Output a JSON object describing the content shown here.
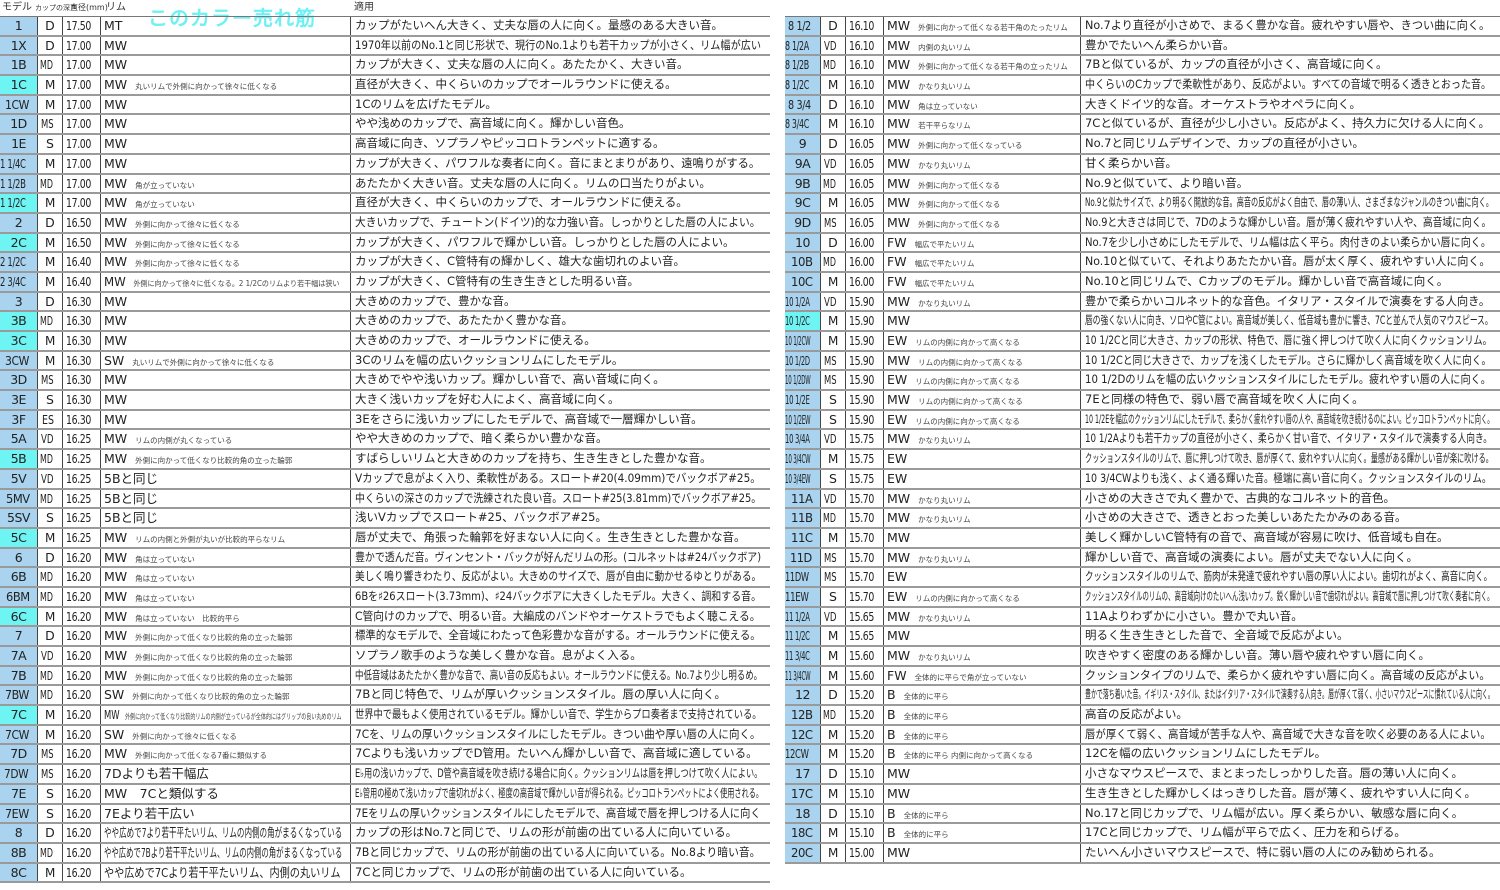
{
  "header": {
    "model": "モデル",
    "depth": "カップの深さ",
    "diameter": "直径(mm)",
    "rim": "リム",
    "application": "適用",
    "bestseller_note": "このカラー売れ筋"
  },
  "colors": {
    "model_cell": "#a9d3ee",
    "bestseller": "#6ff4f4"
  },
  "left_rows": [
    {
      "model": "1",
      "depth": "D",
      "dia": "17.50",
      "rim": "MT",
      "note": "",
      "desc": "カップがたいへん大きく、丈夫な唇の人に向く。量感のある大きい音。",
      "hl": false
    },
    {
      "model": "1X",
      "depth": "D",
      "dia": "17.00",
      "rim": "MW",
      "note": "",
      "desc": "1970年以前のNo.1と同じ形状で、現行のNo.1よりも若干カップが小さく、リム幅が広い",
      "hl": false
    },
    {
      "model": "1B",
      "depth": "MD",
      "dia": "17.00",
      "rim": "MW",
      "note": "",
      "desc": "カップが大きく、丈夫な唇の人に向く。あたたかく、大きい音。",
      "hl": false
    },
    {
      "model": "1C",
      "depth": "M",
      "dia": "17.00",
      "rim": "MW",
      "note": "丸いリムで外側に向かって徐々に低くなる",
      "desc": "直径が大きく、中くらいのカップでオールラウンドに使える。",
      "hl": true
    },
    {
      "model": "1CW",
      "depth": "M",
      "dia": "17.00",
      "rim": "MW",
      "note": "",
      "desc": "1Cのリムを広げたモデル。",
      "hl": false
    },
    {
      "model": "1D",
      "depth": "MS",
      "dia": "17.00",
      "rim": "MW",
      "note": "",
      "desc": "やや浅めのカップで、高音域に向く。輝かしい音色。",
      "hl": false
    },
    {
      "model": "1E",
      "depth": "S",
      "dia": "17.00",
      "rim": "MW",
      "note": "",
      "desc": "高音域に向き、ソプラノやピッコロトランペットに適する。",
      "hl": false
    },
    {
      "model": "1 1/4C",
      "depth": "M",
      "dia": "17.00",
      "rim": "MW",
      "note": "",
      "desc": "カップが大きく、パワフルな奏者に向く。音にまとまりがあり、遠鳴りがする。",
      "hl": false
    },
    {
      "model": "1 1/2B",
      "depth": "MD",
      "dia": "17.00",
      "rim": "MW",
      "note": "角が立っていない",
      "desc": "あたたかく大きい音。丈夫な唇の人に向く。リムの口当たりがよい。",
      "hl": false
    },
    {
      "model": "1 1/2C",
      "depth": "M",
      "dia": "17.00",
      "rim": "MW",
      "note": "角が立っていない",
      "desc": "直径が大きく、中くらいのカップで、オールラウンドに使える。",
      "hl": true
    },
    {
      "model": "2",
      "depth": "D",
      "dia": "16.50",
      "rim": "MW",
      "note": "外側に向かって徐々に低くなる",
      "desc": "大きいカップで、チュートン(ドイツ)的な力強い音。しっかりとした唇の人によい。",
      "hl": false
    },
    {
      "model": "2C",
      "depth": "M",
      "dia": "16.50",
      "rim": "MW",
      "note": "外側に向かって徐々に低くなる",
      "desc": "カップが大きく、パワフルで輝かしい音。しっかりとした唇の人によい。",
      "hl": true
    },
    {
      "model": "2 1/2C",
      "depth": "M",
      "dia": "16.40",
      "rim": "MW",
      "note": "外側に向かって徐々に低くなる",
      "desc": "カップが大きく、C管特有の輝かしく、雄大な歯切れのよい音。",
      "hl": false
    },
    {
      "model": "2 3/4C",
      "depth": "M",
      "dia": "16.40",
      "rim": "MW",
      "note": "外側に向かって徐々に低くなる。2 1/2Cのリムより若干幅は狭い",
      "desc": "カップが大きく、C管特有の生き生きとした明るい音。",
      "hl": false
    },
    {
      "model": "3",
      "depth": "D",
      "dia": "16.30",
      "rim": "MW",
      "note": "",
      "desc": "大きめのカップで、豊かな音。",
      "hl": false
    },
    {
      "model": "3B",
      "depth": "MD",
      "dia": "16.30",
      "rim": "MW",
      "note": "",
      "desc": "大きめのカップで、あたたかく豊かな音。",
      "hl": true
    },
    {
      "model": "3C",
      "depth": "M",
      "dia": "16.30",
      "rim": "MW",
      "note": "",
      "desc": "大きめのカップで、オールラウンドに使える。",
      "hl": true
    },
    {
      "model": "3CW",
      "depth": "M",
      "dia": "16.30",
      "rim": "SW",
      "note": "丸いリムで外側に向かって徐々に低くなる",
      "desc": "3Cのリムを幅の広いクッションリムにしたモデル。",
      "hl": false
    },
    {
      "model": "3D",
      "depth": "MS",
      "dia": "16.30",
      "rim": "MW",
      "note": "",
      "desc": "大きめでやや浅いカップ。輝かしい音で、高い音域に向く。",
      "hl": false
    },
    {
      "model": "3E",
      "depth": "S",
      "dia": "16.30",
      "rim": "MW",
      "note": "",
      "desc": "大きく浅いカップを好む人によく、高音域に向く。",
      "hl": false
    },
    {
      "model": "3F",
      "depth": "ES",
      "dia": "16.30",
      "rim": "MW",
      "note": "",
      "desc": "3Eをさらに浅いカップにしたモデルで、高音域で一層輝かしい音。",
      "hl": false
    },
    {
      "model": "5A",
      "depth": "VD",
      "dia": "16.25",
      "rim": "MW",
      "note": "リムの内側が丸くなっている",
      "desc": "やや大きめのカップで、暗く柔らかい豊かな音。",
      "hl": false
    },
    {
      "model": "5B",
      "depth": "MD",
      "dia": "16.25",
      "rim": "MW",
      "note": "外側に向かって低くなり比較的角の立った輪郭",
      "desc": "すばらしいリムと大きめのカップを持ち、生き生きとした豊かな音。",
      "hl": true
    },
    {
      "model": "5V",
      "depth": "VD",
      "dia": "16.25",
      "rim": "5Bと同じ",
      "note": "",
      "desc": "Vカップで息がよく入り、柔軟性がある。スロート#20(4.09mm)でバックボア#25。",
      "hl": false
    },
    {
      "model": "5MV",
      "depth": "MD",
      "dia": "16.25",
      "rim": "5Bと同じ",
      "note": "",
      "desc": "中くらいの深さのカップで洗練された良い音。スロート#25(3.81mm)でバックボア#25。",
      "hl": false
    },
    {
      "model": "5SV",
      "depth": "S",
      "dia": "16.25",
      "rim": "5Bと同じ",
      "note": "",
      "desc": "浅いVカップでスロート#25、バックボア#25。",
      "hl": false
    },
    {
      "model": "5C",
      "depth": "M",
      "dia": "16.25",
      "rim": "MW",
      "note": "リムの内側と外側が丸いが比較的平らなリム",
      "desc": "唇が丈夫で、角張った輪郭を好まない人に向く。生き生きとした豊かな音。",
      "hl": true
    },
    {
      "model": "6",
      "depth": "D",
      "dia": "16.20",
      "rim": "MW",
      "note": "角は立っていない",
      "desc": "豊かで透んだ音。ヴィンセント・バックが好んだリムの形。(コルネットは#24バックボア)",
      "hl": false
    },
    {
      "model": "6B",
      "depth": "MD",
      "dia": "16.20",
      "rim": "MW",
      "note": "角は立っていない",
      "desc": "美しく鳴り響きわたり、反応がよい。大きめのサイズで、唇が自由に動かせるゆとりがある。",
      "hl": false
    },
    {
      "model": "6BM",
      "depth": "MD",
      "dia": "16.20",
      "rim": "MW",
      "note": "角は立っていない",
      "desc": "6Bを♯26スロート(3.73mm)、♯24バックボアに大きくしたモデル。大きく、調和する音。",
      "hl": false
    },
    {
      "model": "6C",
      "depth": "M",
      "dia": "16.20",
      "rim": "MW",
      "note": "角は立っていない　比較的平ら",
      "desc": "C管向けのカップで、明るい音。大編成のバンドやオーケストラでもよく聴こえる。",
      "hl": true
    },
    {
      "model": "7",
      "depth": "D",
      "dia": "16.20",
      "rim": "MW",
      "note": "外側に向かって低くなり比較的角の立った輪郭",
      "desc": "標準的なモデルで、全音域にわたって色彩豊かな音がする。オールラウンドに使える。",
      "hl": false
    },
    {
      "model": "7A",
      "depth": "VD",
      "dia": "16.20",
      "rim": "MW",
      "note": "外側に向かって低くなり比較的角の立った輪郭",
      "desc": "ソプラノ歌手のような美しく豊かな音。息がよく入る。",
      "hl": false
    },
    {
      "model": "7B",
      "depth": "MD",
      "dia": "16.20",
      "rim": "MW",
      "note": "外側に向かって低くなり比較的角の立った輪郭",
      "desc": "中低音域はあたたかく豊かな音で、高い音の反応もよい。オールラウンドに使える。No.7より少し明るめ。",
      "hl": false
    },
    {
      "model": "7BW",
      "depth": "MD",
      "dia": "16.20",
      "rim": "SW",
      "note": "外側に向かって低くなり比較的角の立った輪郭",
      "desc": "7Bと同じ特色で、リムが厚いクッションスタイル。唇の厚い人に向く。",
      "hl": false
    },
    {
      "model": "7C",
      "depth": "M",
      "dia": "16.20",
      "rim": "MW",
      "note": "外側に向かって低くなり比較的リムの内側が立っているが全体的にはグリップの良い丸めのリム",
      "desc": "世界中で最もよく使用されているモデル。輝かしい音で、学生からプロ奏者まで支持されている。",
      "hl": true
    },
    {
      "model": "7CW",
      "depth": "M",
      "dia": "16.20",
      "rim": "SW",
      "note": "外側に向かって徐々に低くなる",
      "desc": "7Cを、リムの厚いクッションスタイルにしたモデル。きつい曲や厚い唇の人に向く。",
      "hl": false
    },
    {
      "model": "7D",
      "depth": "MS",
      "dia": "16.20",
      "rim": "MW",
      "note": "外側に向かって低くなる7番に類似する",
      "desc": "7Cよりも浅いカップでD管用。たいへん輝かしい音で、高音域に適している。",
      "hl": false
    },
    {
      "model": "7DW",
      "depth": "MS",
      "dia": "16.20",
      "rim": "7Dよりも若干幅広",
      "note": "",
      "desc": "E♭用の浅いカップで、D管や高音域を吹き続ける場合に向く。クッションリムは唇を押しつけて吹く人によい。",
      "hl": false
    },
    {
      "model": "7E",
      "depth": "S",
      "dia": "16.20",
      "rim": "MW　7Cと類似する",
      "note": "",
      "desc": "E♭管用の極めて浅いカップで歯切れがよく、極度の高音域で輝かしい音が得られる。ピッコロトランペットによく使用される。",
      "hl": false
    },
    {
      "model": "7EW",
      "depth": "S",
      "dia": "16.20",
      "rim": "7Eより若干広い",
      "note": "",
      "desc": "7Eをリムの厚いクッションスタイルにしたモデルで、高音域で唇を押しつける人に向く",
      "hl": false
    },
    {
      "model": "8",
      "depth": "D",
      "dia": "16.20",
      "rim": "やや広めで7より若干平たいリム、リムの内側の角がまるくなっている",
      "note": "",
      "desc": "カップの形はNo.7と同じで、リムの形が前歯の出ている人に向いている。",
      "hl": false
    },
    {
      "model": "8B",
      "depth": "MD",
      "dia": "16.20",
      "rim": "やや広めで7Bより若干平たいリム、リムの内側の角がまるくなっている",
      "note": "",
      "desc": "7Bと同じカップで、リムの形が前歯の出ている人に向いている。No.8より暗い音。",
      "hl": false
    },
    {
      "model": "8C",
      "depth": "M",
      "dia": "16.20",
      "rim": "やや広めで7Cより若干平たいリム、内側の丸いリム",
      "note": "",
      "desc": "7Cと同じカップで、リムの形が前歯の出ている人に向いている。",
      "hl": false
    }
  ],
  "right_rows": [
    {
      "model": "8 1/2",
      "depth": "D",
      "dia": "16.10",
      "rim": "MW",
      "note": "外側に向かって低くなる若干角のたったリム",
      "desc": "No.7より直径が小さめで、まるく豊かな音。疲れやすい唇や、きつい曲に向く。",
      "hl": false
    },
    {
      "model": "8 1/2A",
      "depth": "VD",
      "dia": "16.10",
      "rim": "MW",
      "note": "内側の丸いリム",
      "desc": "豊かでたいへん柔らかい音。",
      "hl": false
    },
    {
      "model": "8 1/2B",
      "depth": "MD",
      "dia": "16.10",
      "rim": "MW",
      "note": "外側に向かって低くなる若干角の立ったリム",
      "desc": "7Bと似ているが、カップの直径が小さく、高音域に向く。",
      "hl": false
    },
    {
      "model": "8 1/2C",
      "depth": "M",
      "dia": "16.10",
      "rim": "MW",
      "note": "かなり丸いリム",
      "desc": "中くらいのCカップで柔軟性があり、反応がよい。すべての音域で明るく透きとおった音。",
      "hl": false
    },
    {
      "model": "8 3/4",
      "depth": "D",
      "dia": "16.10",
      "rim": "MW",
      "note": "角は立っていない",
      "desc": "大きくドイツ的な音。オーケストラやオペラに向く。",
      "hl": false
    },
    {
      "model": "8 3/4C",
      "depth": "M",
      "dia": "16.10",
      "rim": "MW",
      "note": "若干平らなリム",
      "desc": "7Cと似ているが、直径が少し小さい。反応がよく、持久力に欠ける人に向く。",
      "hl": false
    },
    {
      "model": "9",
      "depth": "D",
      "dia": "16.05",
      "rim": "MW",
      "note": "外側に向かって低くなっている",
      "desc": "No.7と同じリムデザインで、カップの直径が小さい。",
      "hl": false
    },
    {
      "model": "9A",
      "depth": "VD",
      "dia": "16.05",
      "rim": "MW",
      "note": "かなり丸いリム",
      "desc": "甘く柔らかい音。",
      "hl": false
    },
    {
      "model": "9B",
      "depth": "MD",
      "dia": "16.05",
      "rim": "MW",
      "note": "外側に向かって低くなる",
      "desc": "No.9と似ていて、より暗い音。",
      "hl": false
    },
    {
      "model": "9C",
      "depth": "M",
      "dia": "16.05",
      "rim": "MW",
      "note": "外側に向かって低くなる",
      "desc": "No.9と似たサイズで、より明るく開放的な音。高音の反応がよく自由で、唇の薄い人、さまざまなジャンルのきつい曲に向く。",
      "hl": false
    },
    {
      "model": "9D",
      "depth": "MS",
      "dia": "16.05",
      "rim": "MW",
      "note": "外側に向かって低くなる",
      "desc": "No.9と大きさは同じで、7Dのような輝かしい音。唇が薄く疲れやすい人や、高音域に向く。",
      "hl": false
    },
    {
      "model": "10",
      "depth": "D",
      "dia": "16.00",
      "rim": "FW",
      "note": "幅広で平たいリム",
      "desc": "No.7を少し小さめにしたモデルで、リム幅は広く平ら。肉付きのよい柔らかい唇に向く。",
      "hl": false
    },
    {
      "model": "10B",
      "depth": "MD",
      "dia": "16.00",
      "rim": "FW",
      "note": "幅広で平たいリム",
      "desc": "No.10と似ていて、それよりあたたかい音。唇が太く厚く、疲れやすい人に向く。",
      "hl": false
    },
    {
      "model": "10C",
      "depth": "M",
      "dia": "16.00",
      "rim": "FW",
      "note": "幅広で平たいリム",
      "desc": "No.10と同じリムで、Cカップのモデル。輝かしい音で高音域に向く。",
      "hl": false
    },
    {
      "model": "10 1/2A",
      "depth": "VD",
      "dia": "15.90",
      "rim": "MW",
      "note": "かなり丸いリム",
      "desc": "豊かで柔らかいコルネット的な音色。イタリア・スタイルで演奏をする人向き。",
      "hl": false
    },
    {
      "model": "10 1/2C",
      "depth": "M",
      "dia": "15.90",
      "rim": "MW",
      "note": "",
      "desc": "唇の強くない人に向き、ソロやC管によい。高音域が美しく、低音域も豊かに響き、7Cと並んで人気のマウスピース。",
      "hl": true
    },
    {
      "model": "10 1/2CW",
      "depth": "M",
      "dia": "15.90",
      "rim": "EW",
      "note": "リムの内側に向かって高くなる",
      "desc": "10 1/2Cと同じ大きさ、カップの形状、特色で、唇に強く押しつけて吹く人に向くクッションリム。",
      "hl": false
    },
    {
      "model": "10 1/2D",
      "depth": "MS",
      "dia": "15.90",
      "rim": "MW",
      "note": "リムの内側に向かって高くなる",
      "desc": "10 1/2Cと同じ大きさで、カップを浅くしたモデル。さらに輝かしく高音域を吹く人に向く。",
      "hl": false
    },
    {
      "model": "10 1/2DW",
      "depth": "MS",
      "dia": "15.90",
      "rim": "EW",
      "note": "リムの内側に向かって高くなる",
      "desc": "10 1/2Dのリムを幅の広いクッションスタイルにしたモデル。疲れやすい唇の人に向く。",
      "hl": false
    },
    {
      "model": "10 1/2E",
      "depth": "S",
      "dia": "15.90",
      "rim": "MW",
      "note": "リムの内側に向かって高くなる",
      "desc": "7Eと同様の特色で、弱い唇で高音域を吹く人に向く。",
      "hl": false
    },
    {
      "model": "10 1/2EW",
      "depth": "S",
      "dia": "15.90",
      "rim": "EW",
      "note": "リムの内側に向かって高くなる",
      "desc": "10 1/2Eを幅広のクッションリムにしたモデルで、柔らかく疲れやすい唇の人や、高音域を吹き続けるのによい。ピッコロトランペットに向く。",
      "hl": false
    },
    {
      "model": "10 3/4A",
      "depth": "VD",
      "dia": "15.75",
      "rim": "MW",
      "note": "かなり丸いリム",
      "desc": "10 1/2Aよりも若干カップの直径が小さく、柔らかく甘い音で、イタリア・スタイルで演奏する人向き。",
      "hl": false
    },
    {
      "model": "10 3/4CW",
      "depth": "M",
      "dia": "15.75",
      "rim": "EW",
      "note": "",
      "desc": "クッションスタイルのリムで、唇に押しつけて吹き、唇が厚くて、疲れやすい人に向く。量感がある輝かしい音が楽に吹ける。",
      "hl": false
    },
    {
      "model": "10 3/4EW",
      "depth": "S",
      "dia": "15.75",
      "rim": "EW",
      "note": "",
      "desc": "10 3/4CWよりも浅く、よく通る輝いた音。極端に高い音に向く。クッションスタイルのリム。",
      "hl": false
    },
    {
      "model": "11A",
      "depth": "VD",
      "dia": "15.70",
      "rim": "MW",
      "note": "かなり丸いリム",
      "desc": "小さめの大きさで丸く豊かで、古典的なコルネット的音色。",
      "hl": false
    },
    {
      "model": "11B",
      "depth": "MD",
      "dia": "15.70",
      "rim": "MW",
      "note": "かなり丸いリム",
      "desc": "小さめの大きさで、透きとおった美しいあたたかみのある音。",
      "hl": false
    },
    {
      "model": "11C",
      "depth": "M",
      "dia": "15.70",
      "rim": "MW",
      "note": "",
      "desc": "美しく輝かしいC管特有の音で、高音域が容易に吹け、低音域も自在。",
      "hl": false
    },
    {
      "model": "11D",
      "depth": "MS",
      "dia": "15.70",
      "rim": "MW",
      "note": "かなり丸いリム",
      "desc": "輝かしい音で、高音域の演奏によい。唇が丈夫でない人に向く。",
      "hl": false
    },
    {
      "model": "11DW",
      "depth": "MS",
      "dia": "15.70",
      "rim": "EW",
      "note": "",
      "desc": "クッションスタイルのリムで、筋肉が未発達で疲れやすい唇の厚い人によい。歯切れがよく、高音に向く。",
      "hl": false
    },
    {
      "model": "11EW",
      "depth": "S",
      "dia": "15.70",
      "rim": "EW",
      "note": "リムの内側に向かって高くなる",
      "desc": "クッションスタイルのリムの、高音域向けのたいへん浅いカップ。鋭く輝かしい音で歯切れがよい。高音域で唇に押しつけて吹く奏者に向く。",
      "hl": false
    },
    {
      "model": "11 1/2A",
      "depth": "VD",
      "dia": "15.65",
      "rim": "MW",
      "note": "かなり丸いリム",
      "desc": "11Aよりわずかに小さい。豊かで丸い音。",
      "hl": false
    },
    {
      "model": "11 1/2C",
      "depth": "M",
      "dia": "15.65",
      "rim": "MW",
      "note": "",
      "desc": "明るく生き生きとした音で、全音域で反応がよい。",
      "hl": false
    },
    {
      "model": "11 3/4C",
      "depth": "M",
      "dia": "15.60",
      "rim": "MW",
      "note": "かなり丸いリム",
      "desc": "吹きやすく密度のある輝かしい音。薄い唇や疲れやすい唇に向く。",
      "hl": false
    },
    {
      "model": "11 3/4CW",
      "depth": "M",
      "dia": "15.60",
      "rim": "FW",
      "note": "全体的に平らで角が立っていない",
      "desc": "クッションタイプのリムで、柔らかく疲れやすい唇に向く。高音域の反応がよい。",
      "hl": false
    },
    {
      "model": "12",
      "depth": "D",
      "dia": "15.20",
      "rim": "B",
      "note": "全体的に平ら",
      "desc": "豊かで落ち着いた音。イギリス・スタイル、またはイタリア・スタイルで演奏する人向き。唇が厚くて弱く、小さいマウスピースに慣れている人に向く。",
      "hl": false
    },
    {
      "model": "12B",
      "depth": "MD",
      "dia": "15.20",
      "rim": "B",
      "note": "全体的に平ら",
      "desc": "高音の反応がよい。",
      "hl": false
    },
    {
      "model": "12C",
      "depth": "M",
      "dia": "15.20",
      "rim": "B",
      "note": "全体的に平ら",
      "desc": "唇が厚くて弱く、高音域が苦手な人や、高音域で大きな音を吹く必要のある人によい。",
      "hl": false
    },
    {
      "model": "12CW",
      "depth": "M",
      "dia": "15.20",
      "rim": "B",
      "note": "全体的に平ら 内側に向かって高くなる",
      "desc": "12Cを幅の広いクッションリムにしたモデル。",
      "hl": false
    },
    {
      "model": "17",
      "depth": "D",
      "dia": "15.10",
      "rim": "MW",
      "note": "",
      "desc": "小さなマウスピースで、まとまったしっかりした音。唇の薄い人に向く。",
      "hl": false
    },
    {
      "model": "17C",
      "depth": "M",
      "dia": "15.10",
      "rim": "MW",
      "note": "",
      "desc": "生き生きとした輝かしくはっきりした音。唇が薄く、疲れやすい人に向く。",
      "hl": false
    },
    {
      "model": "18",
      "depth": "D",
      "dia": "15.10",
      "rim": "B",
      "note": "全体的に平ら",
      "desc": "No.17と同じカップで、リム幅が広い。厚く柔らかい、敏感な唇に向く。",
      "hl": false
    },
    {
      "model": "18C",
      "depth": "M",
      "dia": "15.10",
      "rim": "B",
      "note": "全体的に平ら",
      "desc": "17Cと同じカップで、リム幅が平らで広く、圧力を和らげる。",
      "hl": false
    },
    {
      "model": "20C",
      "depth": "M",
      "dia": "15.00",
      "rim": "MW",
      "note": "",
      "desc": "たいへん小さいマウスピースで、特に弱い唇の人にのみ勧められる。",
      "hl": false
    }
  ]
}
